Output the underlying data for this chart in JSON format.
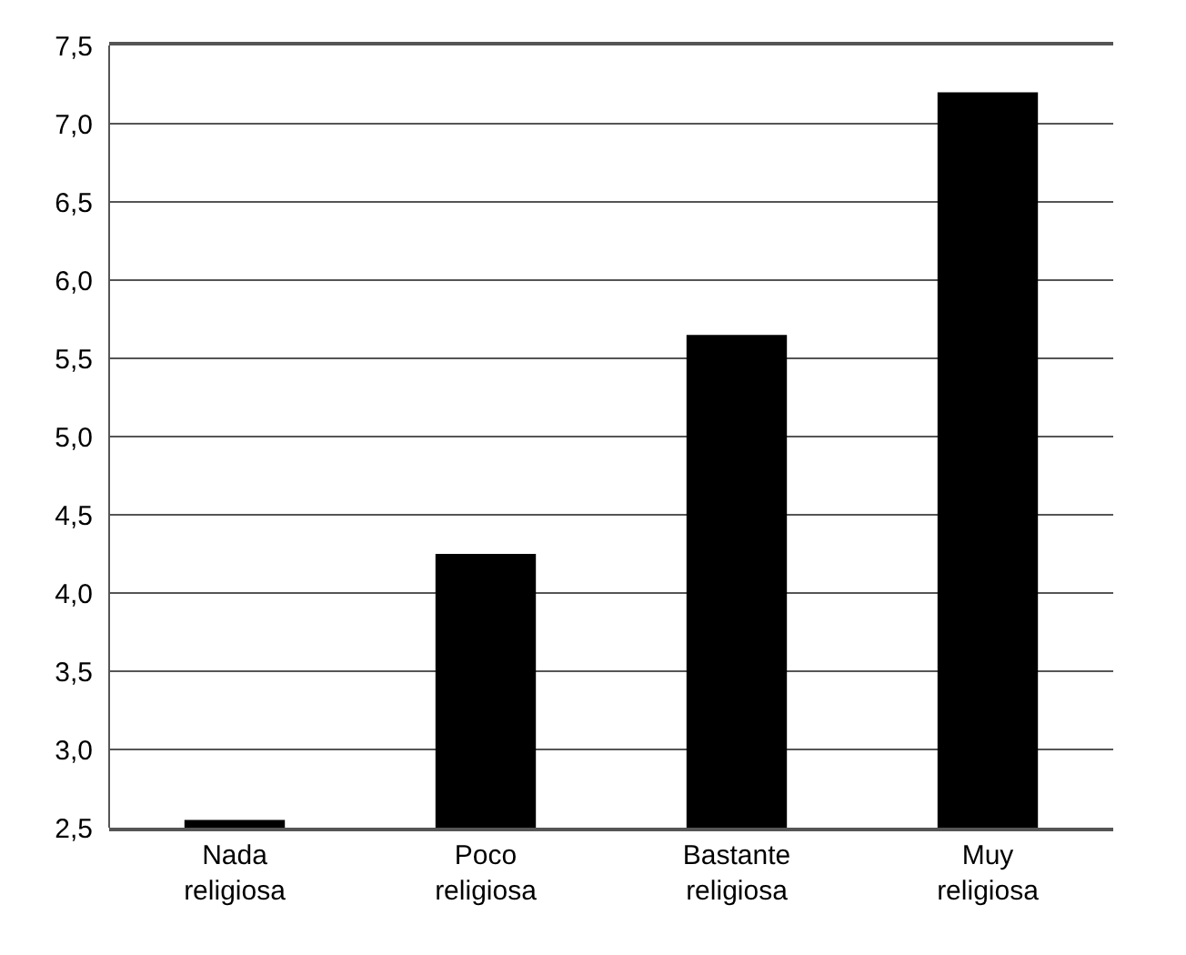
{
  "chart_data": {
    "type": "bar",
    "categories": [
      "Nada\nreligiosa",
      "Poco\nreligiosa",
      "Bastante\nreligiosa",
      "Muy\nreligiosa"
    ],
    "values": [
      2.55,
      4.25,
      5.65,
      7.2
    ],
    "color": "#000000",
    "ylim": [
      2.5,
      7.5
    ],
    "yticks": [
      {
        "value": 2.5,
        "label": "2,5"
      },
      {
        "value": 3.0,
        "label": "3,0"
      },
      {
        "value": 3.5,
        "label": "3,5"
      },
      {
        "value": 4.0,
        "label": "4,0"
      },
      {
        "value": 4.5,
        "label": "4,5"
      },
      {
        "value": 5.0,
        "label": "5,0"
      },
      {
        "value": 5.5,
        "label": "5,5"
      },
      {
        "value": 6.0,
        "label": "6,0"
      },
      {
        "value": 6.5,
        "label": "6,5"
      },
      {
        "value": 7.0,
        "label": "7,0"
      },
      {
        "value": 7.5,
        "label": "7,5"
      }
    ],
    "grid": "y"
  }
}
